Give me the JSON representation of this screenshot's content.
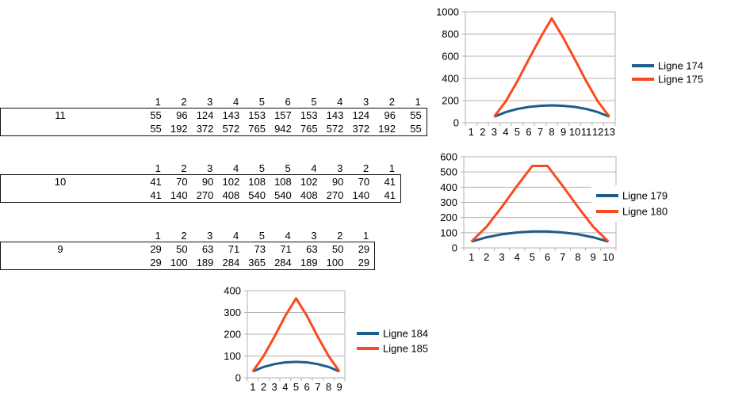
{
  "app": {
    "background": "#ffffff"
  },
  "tables": [
    {
      "label": "11",
      "header": [
        "1",
        "2",
        "3",
        "4",
        "5",
        "6",
        "5",
        "4",
        "3",
        "2",
        "1"
      ],
      "rows": [
        [
          "55",
          "96",
          "124",
          "143",
          "153",
          "157",
          "153",
          "143",
          "124",
          "96",
          "55"
        ],
        [
          "55",
          "192",
          "372",
          "572",
          "765",
          "942",
          "765",
          "572",
          "372",
          "192",
          "55"
        ]
      ]
    },
    {
      "label": "10",
      "header": [
        "1",
        "2",
        "3",
        "4",
        "5",
        "5",
        "4",
        "3",
        "2",
        "1"
      ],
      "rows": [
        [
          "41",
          "70",
          "90",
          "102",
          "108",
          "108",
          "102",
          "90",
          "70",
          "41"
        ],
        [
          "41",
          "140",
          "270",
          "408",
          "540",
          "540",
          "408",
          "270",
          "140",
          "41"
        ]
      ]
    },
    {
      "label": "9",
      "header": [
        "1",
        "2",
        "3",
        "4",
        "5",
        "4",
        "3",
        "2",
        "1"
      ],
      "rows": [
        [
          "29",
          "50",
          "63",
          "71",
          "73",
          "71",
          "63",
          "50",
          "29"
        ],
        [
          "29",
          "100",
          "189",
          "284",
          "365",
          "284",
          "189",
          "100",
          "29"
        ]
      ]
    }
  ],
  "chart_data": [
    {
      "type": "line",
      "title": "",
      "categories": [
        "1",
        "2",
        "3",
        "4",
        "5",
        "6",
        "7",
        "8",
        "9",
        "10",
        "11",
        "12",
        "13"
      ],
      "series": [
        {
          "name": "Ligne 174",
          "color": "#1e5c8c",
          "start_index": 2,
          "values": [
            55,
            96,
            124,
            143,
            153,
            157,
            153,
            143,
            124,
            96,
            55
          ]
        },
        {
          "name": "Ligne 175",
          "color": "#fa4a1d",
          "start_index": 2,
          "values": [
            55,
            192,
            372,
            572,
            765,
            942,
            765,
            572,
            372,
            192,
            55
          ]
        }
      ],
      "ylim": [
        0,
        1000
      ],
      "ytick": 200,
      "yticklabels": [
        "0",
        "200",
        "400",
        "600",
        "800",
        "1000"
      ],
      "grid": "horizontal",
      "legend_position": "right"
    },
    {
      "type": "line",
      "title": "",
      "categories": [
        "1",
        "2",
        "3",
        "4",
        "5",
        "6",
        "7",
        "8",
        "9",
        "10"
      ],
      "series": [
        {
          "name": "Ligne 179",
          "color": "#1e5c8c",
          "start_index": 0,
          "values": [
            41,
            70,
            90,
            102,
            108,
            108,
            102,
            90,
            70,
            41
          ]
        },
        {
          "name": "Ligne 180",
          "color": "#fa4a1d",
          "start_index": 0,
          "values": [
            41,
            140,
            270,
            408,
            540,
            540,
            408,
            270,
            140,
            41
          ]
        }
      ],
      "ylim": [
        0,
        600
      ],
      "ytick": 100,
      "yticklabels": [
        "0",
        "100",
        "200",
        "300",
        "400",
        "500",
        "600"
      ],
      "grid": "horizontal",
      "legend_position": "right"
    },
    {
      "type": "line",
      "title": "",
      "categories": [
        "1",
        "2",
        "3",
        "4",
        "5",
        "6",
        "7",
        "8",
        "9"
      ],
      "series": [
        {
          "name": "Ligne 184",
          "color": "#1e5c8c",
          "start_index": 0,
          "values": [
            29,
            50,
            63,
            71,
            73,
            71,
            63,
            50,
            29
          ]
        },
        {
          "name": "Ligne 185",
          "color": "#fa4a1d",
          "start_index": 0,
          "values": [
            29,
            100,
            189,
            284,
            365,
            284,
            189,
            100,
            29
          ]
        }
      ],
      "ylim": [
        0,
        400
      ],
      "ytick": 100,
      "yticklabels": [
        "0",
        "100",
        "200",
        "300",
        "400"
      ],
      "grid": "horizontal",
      "legend_position": "right"
    }
  ],
  "chart_style": {
    "axis_color": "#b3b3b3",
    "grid_color": "#b3b3b3",
    "text_color": "#000000",
    "series_blue": "#1e5c8c",
    "series_orange": "#fa4a1d"
  }
}
